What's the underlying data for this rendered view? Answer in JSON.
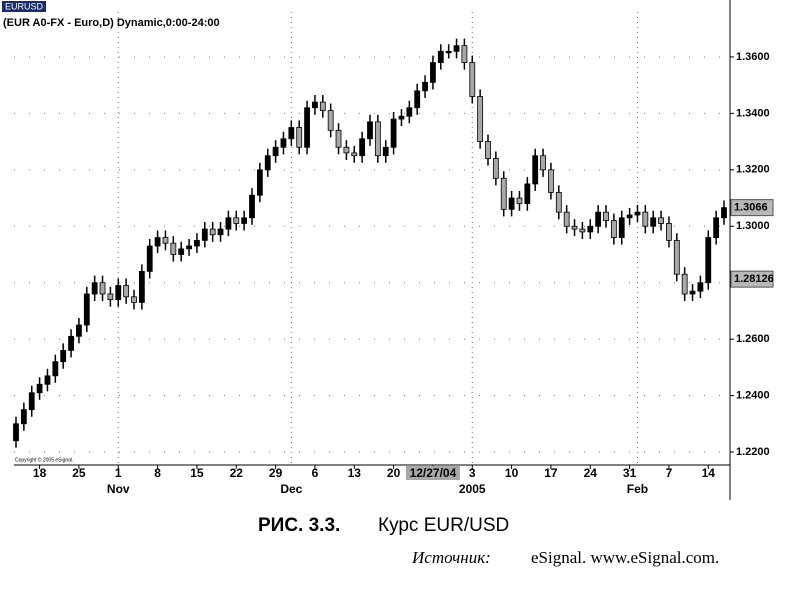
{
  "chart_data": {
    "type": "candlestick",
    "title": "EURUSD",
    "subtitle": "(EUR A0-FX - Euro,D) Dynamic,0:00-24:00",
    "copyright": "Copyright © 2005 eSignal.",
    "categories": [
      null,
      null,
      null,
      "18",
      null,
      null,
      null,
      null,
      "25",
      null,
      null,
      null,
      null,
      "1",
      null,
      null,
      null,
      null,
      "8",
      null,
      null,
      null,
      null,
      "15",
      null,
      null,
      null,
      null,
      "22",
      null,
      null,
      null,
      null,
      "29",
      null,
      null,
      null,
      null,
      "6",
      null,
      null,
      null,
      null,
      "13",
      null,
      null,
      null,
      null,
      "20",
      null,
      null,
      null,
      null,
      "12/27/04",
      null,
      null,
      null,
      null,
      "3",
      null,
      null,
      null,
      null,
      "10",
      null,
      null,
      null,
      null,
      "17",
      null,
      null,
      null,
      null,
      "24",
      null,
      null,
      null,
      null,
      "31",
      null,
      null,
      null,
      null,
      "7",
      null,
      null,
      null,
      null,
      "14",
      null,
      null
    ],
    "month_labels": [
      null,
      null,
      null,
      null,
      null,
      null,
      null,
      null,
      null,
      null,
      null,
      null,
      null,
      "Nov",
      null,
      null,
      null,
      null,
      null,
      null,
      null,
      null,
      null,
      null,
      null,
      null,
      null,
      null,
      null,
      null,
      null,
      null,
      null,
      null,
      null,
      "Dec",
      null,
      null,
      null,
      null,
      null,
      null,
      null,
      null,
      null,
      null,
      null,
      null,
      null,
      null,
      null,
      null,
      null,
      null,
      null,
      null,
      null,
      null,
      "2005",
      null,
      null,
      null,
      null,
      null,
      null,
      null,
      null,
      null,
      null,
      null,
      null,
      null,
      null,
      null,
      null,
      null,
      null,
      null,
      null,
      "Feb",
      null,
      null,
      null,
      null,
      null,
      null,
      null,
      null,
      null,
      null,
      null
    ],
    "highlighted_category": 53,
    "open": [
      1.224,
      1.23,
      1.235,
      1.241,
      1.244,
      1.247,
      1.252,
      1.256,
      1.261,
      1.265,
      1.276,
      1.28,
      1.276,
      1.274,
      1.279,
      1.275,
      1.273,
      1.284,
      1.293,
      1.296,
      1.294,
      1.29,
      1.292,
      1.293,
      1.295,
      1.299,
      1.297,
      1.299,
      1.303,
      1.301,
      1.303,
      1.311,
      1.32,
      1.325,
      1.328,
      1.331,
      1.335,
      1.328,
      1.342,
      1.344,
      1.341,
      1.334,
      1.328,
      1.326,
      1.325,
      1.331,
      1.337,
      1.325,
      1.328,
      1.338,
      1.339,
      1.342,
      1.348,
      1.351,
      1.358,
      1.362,
      1.362,
      1.364,
      1.358,
      1.346,
      1.33,
      1.324,
      1.317,
      1.306,
      1.31,
      1.308,
      1.315,
      1.325,
      1.32,
      1.312,
      1.305,
      1.3,
      1.299,
      1.298,
      1.3,
      1.305,
      1.302,
      1.296,
      1.303,
      1.304,
      1.305,
      1.3,
      1.303,
      1.301,
      1.295,
      1.283,
      1.276,
      1.277,
      1.28,
      1.296,
      1.303
    ],
    "high": [
      1.2325,
      1.2375,
      1.2435,
      1.2465,
      1.2495,
      1.2545,
      1.2585,
      1.2635,
      1.2675,
      1.2785,
      1.2825,
      1.2825,
      1.2785,
      1.2815,
      1.2815,
      1.2775,
      1.2865,
      1.2955,
      1.2985,
      1.2985,
      1.2965,
      1.2945,
      1.2955,
      1.2975,
      1.3015,
      1.3015,
      1.3015,
      1.3055,
      1.3055,
      1.3055,
      1.3135,
      1.3225,
      1.3275,
      1.3305,
      1.3335,
      1.3375,
      1.3375,
      1.3445,
      1.3465,
      1.3465,
      1.3435,
      1.3365,
      1.3305,
      1.3285,
      1.3335,
      1.3395,
      1.3395,
      1.3305,
      1.3405,
      1.3415,
      1.3445,
      1.3505,
      1.3535,
      1.3605,
      1.3645,
      1.3645,
      1.3665,
      1.3665,
      1.3605,
      1.3485,
      1.3325,
      1.3265,
      1.3195,
      1.3125,
      1.3125,
      1.3175,
      1.3275,
      1.3275,
      1.3225,
      1.3145,
      1.3075,
      1.3025,
      1.3015,
      1.3025,
      1.3075,
      1.3075,
      1.3045,
      1.3055,
      1.3065,
      1.3075,
      1.3075,
      1.3055,
      1.3055,
      1.3035,
      1.2975,
      1.2855,
      1.2795,
      1.2825,
      1.2985,
      1.3055,
      1.3091
    ],
    "low": [
      1.2215,
      1.2275,
      1.2325,
      1.2385,
      1.2415,
      1.2445,
      1.2495,
      1.2535,
      1.2585,
      1.2625,
      1.2735,
      1.2735,
      1.2715,
      1.2715,
      1.2725,
      1.2705,
      1.2705,
      1.2815,
      1.2905,
      1.2915,
      1.2875,
      1.2875,
      1.2895,
      1.2905,
      1.2925,
      1.2945,
      1.2945,
      1.2965,
      1.2985,
      1.2985,
      1.3005,
      1.3085,
      1.3175,
      1.3225,
      1.3255,
      1.3285,
      1.3255,
      1.3255,
      1.3395,
      1.3385,
      1.3315,
      1.3255,
      1.3235,
      1.3225,
      1.3225,
      1.3285,
      1.3225,
      1.3225,
      1.3255,
      1.3355,
      1.3365,
      1.3395,
      1.3455,
      1.3485,
      1.3555,
      1.3595,
      1.3595,
      1.3555,
      1.3435,
      1.3275,
      1.3215,
      1.3145,
      1.3035,
      1.3035,
      1.3055,
      1.3055,
      1.3125,
      1.3175,
      1.3095,
      1.3025,
      1.2975,
      1.2965,
      1.2955,
      1.2955,
      1.2975,
      1.2995,
      1.2935,
      1.2935,
      1.3005,
      1.3015,
      1.2975,
      1.2975,
      1.2985,
      1.2925,
      1.2805,
      1.2735,
      1.2735,
      1.2745,
      1.2775,
      1.2935,
      1.3005
    ],
    "close": [
      1.23,
      1.235,
      1.241,
      1.244,
      1.247,
      1.252,
      1.256,
      1.261,
      1.265,
      1.276,
      1.28,
      1.276,
      1.274,
      1.279,
      1.275,
      1.273,
      1.284,
      1.293,
      1.296,
      1.294,
      1.29,
      1.292,
      1.293,
      1.295,
      1.299,
      1.297,
      1.299,
      1.303,
      1.301,
      1.303,
      1.311,
      1.32,
      1.325,
      1.328,
      1.331,
      1.335,
      1.328,
      1.342,
      1.344,
      1.341,
      1.334,
      1.328,
      1.326,
      1.325,
      1.331,
      1.337,
      1.325,
      1.328,
      1.338,
      1.339,
      1.342,
      1.348,
      1.351,
      1.358,
      1.362,
      1.362,
      1.364,
      1.358,
      1.346,
      1.33,
      1.324,
      1.317,
      1.306,
      1.31,
      1.308,
      1.315,
      1.325,
      1.32,
      1.312,
      1.305,
      1.3,
      1.299,
      1.298,
      1.3,
      1.305,
      1.302,
      1.296,
      1.303,
      1.304,
      1.305,
      1.3,
      1.303,
      1.301,
      1.295,
      1.283,
      1.276,
      1.277,
      1.28,
      1.296,
      1.303,
      1.3066
    ],
    "up_color": "#000000",
    "down_color": "#a8a8a8",
    "ylim": [
      1.2161,
      1.3731
    ],
    "yticks": [
      {
        "value": 1.22,
        "label": "1.2200"
      },
      {
        "value": 1.24,
        "label": "1.2400"
      },
      {
        "value": 1.26,
        "label": "1.2600"
      },
      {
        "value": 1.28,
        "label": "1.2800"
      },
      {
        "value": 1.3,
        "label": "1.3000"
      },
      {
        "value": 1.32,
        "label": "1.3200"
      },
      {
        "value": 1.34,
        "label": "1.3400"
      },
      {
        "value": 1.36,
        "label": "1.3600"
      }
    ],
    "price_labels": [
      {
        "value": 1.3066,
        "label": "1.3066"
      },
      {
        "value": 1.28126,
        "label": "1.28126"
      }
    ],
    "grid": true
  },
  "caption": {
    "figure": "РИС. 3.3.",
    "text": "Курс EUR/USD",
    "source_label": "Источник:",
    "source": "eSignal. www.eSignal.com."
  }
}
